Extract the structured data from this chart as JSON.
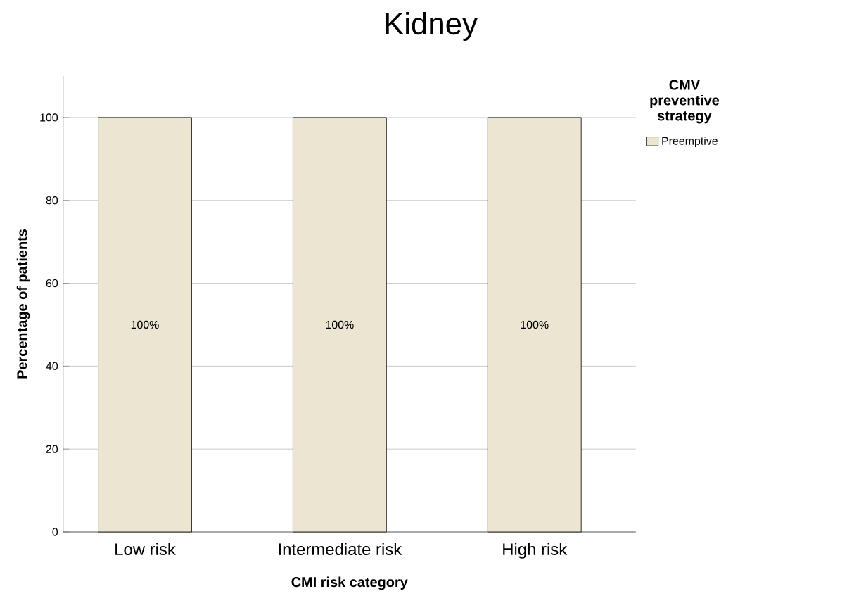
{
  "chart_data": {
    "type": "bar",
    "title": "Kidney",
    "xlabel": "CMI risk category",
    "ylabel": "Percentage of patients",
    "legend_title": "CMV preventive strategy",
    "categories": [
      "Low risk",
      "Intermediate risk",
      "High risk"
    ],
    "series": [
      {
        "name": "Preemptive",
        "color": "#ebe5d1",
        "values": [
          100,
          100,
          100
        ],
        "value_labels": [
          "100%",
          "100%",
          "100%"
        ]
      }
    ],
    "ylim": [
      0,
      110
    ],
    "yticks": [
      0,
      20,
      40,
      60,
      80,
      100
    ],
    "grid": "y",
    "legend": "top right"
  }
}
